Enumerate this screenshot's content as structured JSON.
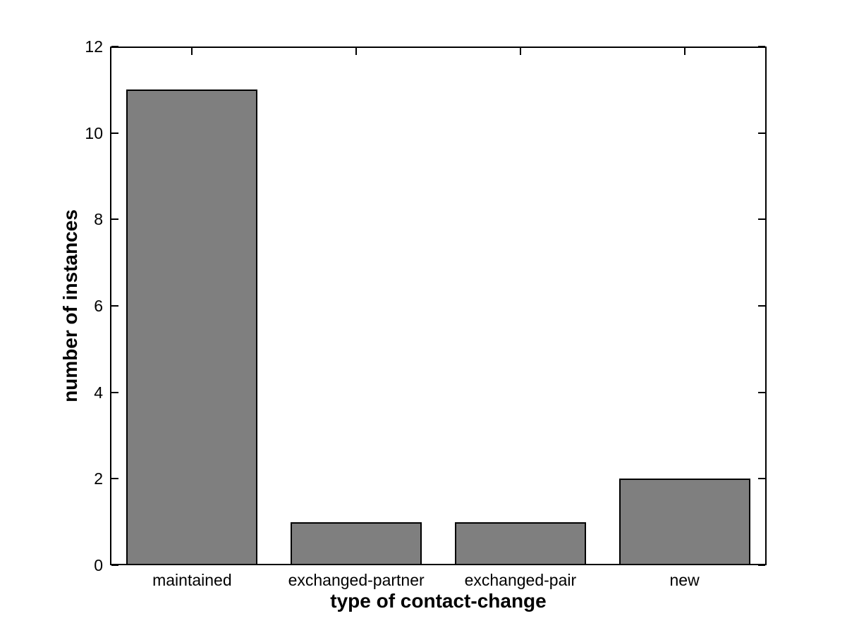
{
  "chart_data": {
    "type": "bar",
    "title": "",
    "categories": [
      "maintained",
      "exchanged-partner",
      "exchanged-pair",
      "new"
    ],
    "values": [
      11,
      1,
      1,
      2
    ],
    "xlabel": "type of contact-change",
    "ylabel": "number of instances",
    "ylim": [
      0,
      12
    ],
    "yticks": [
      0,
      2,
      4,
      6,
      8,
      10,
      12
    ],
    "ytick_labels": [
      "0",
      "2",
      "4",
      "6",
      "8",
      "10",
      "12"
    ],
    "grid": false,
    "legend": false,
    "bar_color": "#7f7f7f",
    "bar_edge_color": "#000000",
    "axis_color": "#000000",
    "text_color": "#000000",
    "background_color": "#ffffff",
    "bar_width_fraction": 0.8,
    "tick_direction": "in",
    "mirrored_ticks": true
  }
}
